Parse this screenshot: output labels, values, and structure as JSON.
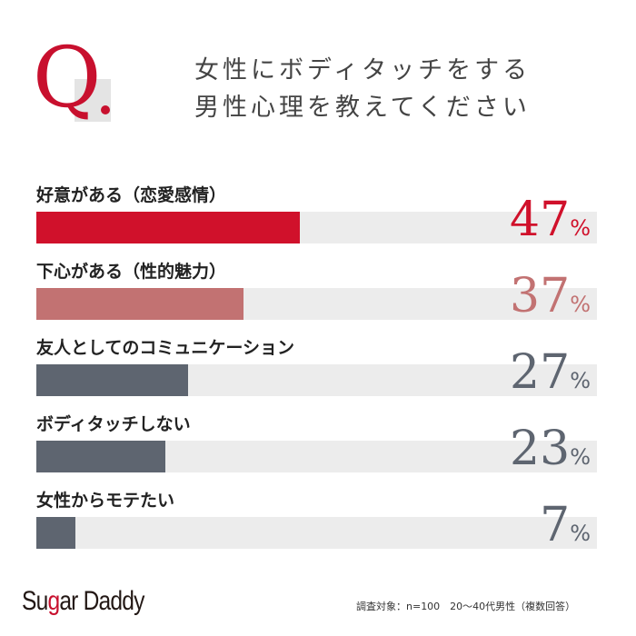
{
  "chart_data": {
    "type": "bar",
    "title": "女性にボディタッチをする男性心理を教えてください",
    "title_lines": [
      "女性にボディタッチをする",
      "男性心理を教えてください"
    ],
    "q_mark": "Q.",
    "categories": [
      "好意がある（恋愛感情）",
      "下心がある（性的魅力）",
      "友人としてのコミュニケーション",
      "ボディタッチしない",
      "女性からモテたい"
    ],
    "values": [
      47,
      37,
      27,
      23,
      7
    ],
    "colors": [
      "#d0112b",
      "#c27272",
      "#5e6570",
      "#5e6570",
      "#5e6570"
    ],
    "unit": "%",
    "xlim": [
      0,
      100
    ]
  },
  "footer": {
    "logo": "SugarDaddy",
    "logo_parts": [
      "Su",
      "g",
      "ar Daddy"
    ],
    "note": "調査対象：n=100　20～40代男性（複数回答）"
  }
}
